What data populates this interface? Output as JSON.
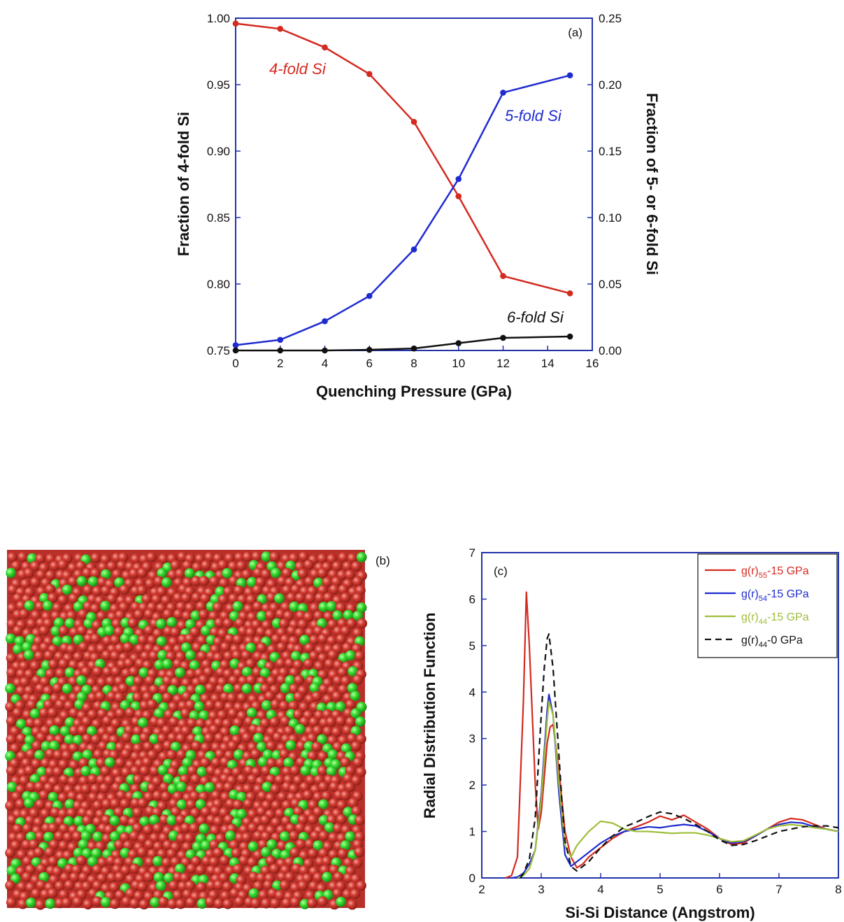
{
  "colors": {
    "red": "#d42a20",
    "blue": "#1f2bd1",
    "black": "#111111",
    "green": "#9fbe3a",
    "axis": "#2233aa",
    "atom_red": "#c8342b",
    "atom_green": "#38d430"
  },
  "chart_data": [
    {
      "id": "a",
      "type": "line",
      "panel_label": "(a)",
      "xlabel": "Quenching Pressure (GPa)",
      "ylabel": "Fraction of 4-fold Si",
      "ylabel_right": "Fraction of 5- or 6-fold Si",
      "xlim": [
        0,
        16
      ],
      "ylim": [
        0.75,
        1.0
      ],
      "ylim_right": [
        0.0,
        0.25
      ],
      "xticks": [
        "0",
        "2",
        "4",
        "6",
        "8",
        "10",
        "12",
        "14",
        "16"
      ],
      "yticks": [
        "0.75",
        "0.80",
        "0.85",
        "0.90",
        "0.95",
        "1.00"
      ],
      "yticks_right": [
        "0.00",
        "0.05",
        "0.10",
        "0.15",
        "0.20",
        "0.25"
      ],
      "x": [
        0,
        2,
        4,
        6,
        8,
        10,
        12,
        15
      ],
      "series": [
        {
          "name": "4-fold Si",
          "axis": "left",
          "color": "#d42a20",
          "values": [
            0.996,
            0.992,
            0.978,
            0.958,
            0.922,
            0.866,
            0.806,
            0.793
          ]
        },
        {
          "name": "5-fold Si",
          "axis": "right",
          "color": "#1f2bd1",
          "values": [
            0.004,
            0.008,
            0.022,
            0.041,
            0.076,
            0.129,
            0.194,
            0.207
          ]
        },
        {
          "name": "6-fold Si",
          "axis": "right",
          "color": "#111111",
          "values": [
            0.0,
            0.0,
            0.0,
            0.0005,
            0.0015,
            0.0055,
            0.0095,
            0.0105
          ]
        }
      ]
    },
    {
      "id": "c",
      "type": "line",
      "panel_label": "(c)",
      "xlabel": "Si-Si Distance (Angstrom)",
      "ylabel": "Radial Distribution Function",
      "xlim": [
        2,
        8
      ],
      "ylim": [
        0,
        7
      ],
      "xticks": [
        "2",
        "3",
        "4",
        "5",
        "6",
        "7",
        "8"
      ],
      "yticks": [
        "0",
        "1",
        "2",
        "3",
        "4",
        "5",
        "6",
        "7"
      ],
      "legend_position": "top-right",
      "series": [
        {
          "name_main": "g(r)",
          "name_sub": "55",
          "name_suffix": "-15 GPa",
          "color": "#d42a20",
          "dash": "",
          "x": [
            2.4,
            2.5,
            2.6,
            2.7,
            2.75,
            2.8,
            2.9,
            2.95,
            3.0,
            3.1,
            3.15,
            3.2,
            3.3,
            3.4,
            3.5,
            3.6,
            3.7,
            3.8,
            4.0,
            4.2,
            4.4,
            4.6,
            4.8,
            5.0,
            5.2,
            5.4,
            5.6,
            5.8,
            6.0,
            6.2,
            6.4,
            6.6,
            6.8,
            7.0,
            7.2,
            7.4,
            7.6,
            7.8,
            8.0
          ],
          "y": [
            0,
            0.05,
            0.45,
            3.8,
            6.15,
            5.0,
            2.0,
            1.05,
            1.4,
            2.9,
            3.25,
            3.3,
            2.3,
            1.0,
            0.45,
            0.22,
            0.3,
            0.45,
            0.65,
            0.85,
            1.0,
            1.1,
            1.2,
            1.33,
            1.25,
            1.35,
            1.2,
            1.05,
            0.85,
            0.72,
            0.75,
            0.9,
            1.05,
            1.2,
            1.28,
            1.25,
            1.15,
            1.05,
            1.0
          ]
        },
        {
          "name_main": "g(r)",
          "name_sub": "54",
          "name_suffix": "-15 GPa",
          "color": "#1f2bd1",
          "dash": "",
          "x": [
            2.5,
            2.6,
            2.7,
            2.8,
            2.9,
            3.0,
            3.1,
            3.13,
            3.2,
            3.3,
            3.4,
            3.5,
            3.6,
            3.8,
            4.0,
            4.2,
            4.4,
            4.6,
            4.8,
            5.0,
            5.2,
            5.4,
            5.6,
            5.8,
            6.0,
            6.2,
            6.4,
            6.6,
            6.8,
            7.0,
            7.2,
            7.4,
            7.6,
            7.8,
            8.0
          ],
          "y": [
            0,
            0.02,
            0.1,
            0.3,
            0.6,
            1.8,
            3.6,
            3.95,
            3.5,
            1.8,
            0.5,
            0.25,
            0.35,
            0.55,
            0.75,
            0.9,
            1.0,
            1.05,
            1.1,
            1.08,
            1.12,
            1.15,
            1.12,
            1.0,
            0.85,
            0.75,
            0.78,
            0.9,
            1.05,
            1.15,
            1.2,
            1.18,
            1.1,
            1.05,
            1.0
          ]
        },
        {
          "name_main": "g(r)",
          "name_sub": "44",
          "name_suffix": "-15 GPa",
          "color": "#9fbe3a",
          "dash": "",
          "x": [
            2.6,
            2.7,
            2.8,
            2.9,
            3.0,
            3.1,
            3.13,
            3.2,
            3.3,
            3.4,
            3.5,
            3.6,
            3.8,
            4.0,
            4.2,
            4.4,
            4.6,
            4.8,
            5.0,
            5.2,
            5.4,
            5.6,
            5.8,
            6.0,
            6.2,
            6.4,
            6.6,
            6.8,
            7.0,
            7.2,
            7.4,
            7.6,
            7.8,
            8.0
          ],
          "y": [
            0,
            0.05,
            0.2,
            0.6,
            1.7,
            3.4,
            3.8,
            3.5,
            2.0,
            0.7,
            0.45,
            0.7,
            1.0,
            1.22,
            1.18,
            1.05,
            1.0,
            1.0,
            0.98,
            0.96,
            0.97,
            0.97,
            0.92,
            0.85,
            0.78,
            0.8,
            0.92,
            1.05,
            1.12,
            1.15,
            1.12,
            1.08,
            1.05,
            1.0
          ]
        },
        {
          "name_main": "g(r)",
          "name_sub": "44",
          "name_suffix": "-0 GPa",
          "color": "#111111",
          "dash": "9,6",
          "x": [
            2.65,
            2.7,
            2.8,
            2.9,
            3.0,
            3.05,
            3.1,
            3.13,
            3.2,
            3.3,
            3.35,
            3.4,
            3.5,
            3.6,
            3.8,
            4.0,
            4.2,
            4.4,
            4.6,
            4.8,
            5.0,
            5.2,
            5.4,
            5.6,
            5.8,
            6.0,
            6.2,
            6.4,
            6.6,
            6.8,
            7.0,
            7.2,
            7.4,
            7.6,
            7.8,
            8.0
          ],
          "y": [
            0,
            0.1,
            0.4,
            1.3,
            3.5,
            4.5,
            5.15,
            5.25,
            4.5,
            2.6,
            1.6,
            0.8,
            0.25,
            0.15,
            0.35,
            0.65,
            0.9,
            1.1,
            1.2,
            1.32,
            1.42,
            1.38,
            1.28,
            1.15,
            1.0,
            0.82,
            0.7,
            0.72,
            0.8,
            0.9,
            1.0,
            1.05,
            1.1,
            1.12,
            1.12,
            1.08
          ]
        }
      ]
    }
  ],
  "panel_b": {
    "label": "(b)"
  },
  "annotations": {
    "four_fold": "4-fold Si",
    "five_fold": "5-fold Si",
    "six_fold": "6-fold Si"
  }
}
